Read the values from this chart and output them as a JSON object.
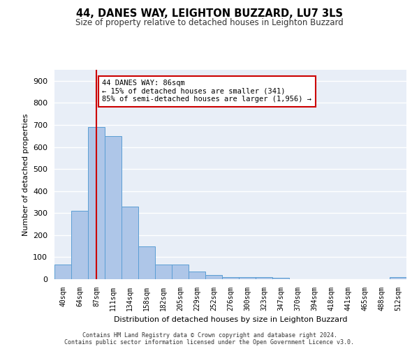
{
  "title1": "44, DANES WAY, LEIGHTON BUZZARD, LU7 3LS",
  "title2": "Size of property relative to detached houses in Leighton Buzzard",
  "xlabel": "Distribution of detached houses by size in Leighton Buzzard",
  "ylabel": "Number of detached properties",
  "bar_values": [
    65,
    310,
    690,
    650,
    330,
    150,
    65,
    65,
    35,
    20,
    10,
    10,
    10,
    5,
    0,
    0,
    0,
    0,
    0,
    0,
    10
  ],
  "bin_labels": [
    "40sqm",
    "64sqm",
    "87sqm",
    "111sqm",
    "134sqm",
    "158sqm",
    "182sqm",
    "205sqm",
    "229sqm",
    "252sqm",
    "276sqm",
    "300sqm",
    "323sqm",
    "347sqm",
    "370sqm",
    "394sqm",
    "418sqm",
    "441sqm",
    "465sqm",
    "488sqm",
    "512sqm"
  ],
  "bar_color": "#aec6e8",
  "bar_edge_color": "#5a9ed4",
  "vline_x": 2,
  "vline_color": "#cc0000",
  "annotation_text": "44 DANES WAY: 86sqm\n← 15% of detached houses are smaller (341)\n85% of semi-detached houses are larger (1,956) →",
  "annotation_box_color": "#ffffff",
  "annotation_box_edge": "#cc0000",
  "ylim": [
    0,
    950
  ],
  "yticks": [
    0,
    100,
    200,
    300,
    400,
    500,
    600,
    700,
    800,
    900
  ],
  "footer_text": "Contains HM Land Registry data © Crown copyright and database right 2024.\nContains public sector information licensed under the Open Government Licence v3.0.",
  "bg_color": "#e8eef7",
  "grid_color": "#ffffff"
}
